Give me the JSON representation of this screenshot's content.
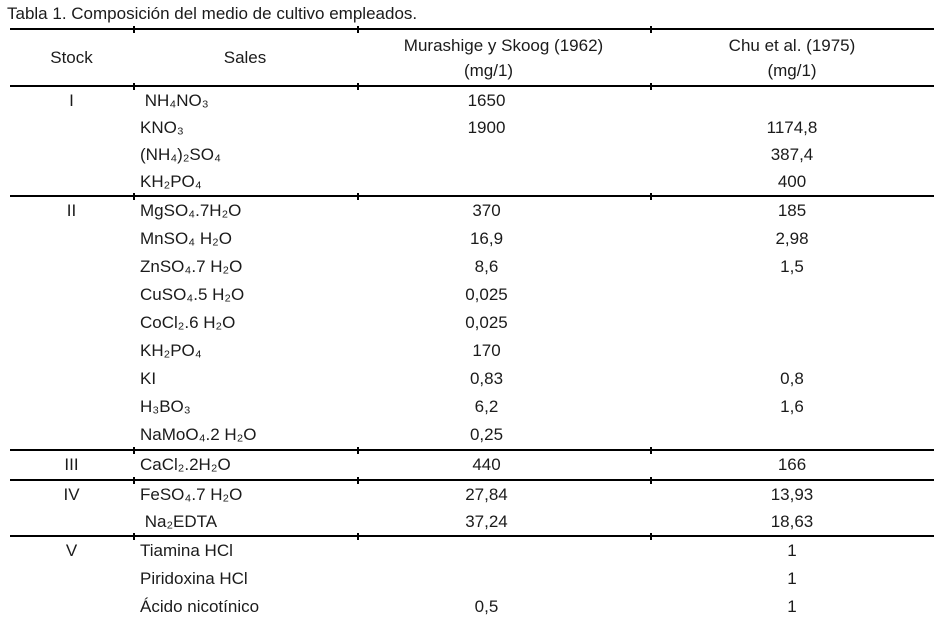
{
  "caption": "Tabla 1. Composición del medio de cultivo empleados.",
  "header": {
    "stock": "Stock",
    "sales": "Sales",
    "ms_title": "Murashige y Skoog (1962)",
    "ms_unit": "(mg/1)",
    "chu_title": "Chu et al. (1975)",
    "chu_unit": "(mg/1)"
  },
  "groups": [
    {
      "stock": "I",
      "rows": [
        {
          "sales": " NH₄NO₃",
          "ms": "1650",
          "chu": ""
        },
        {
          "sales": "KNO₃",
          "ms": "1900",
          "chu": "1174,8"
        },
        {
          "sales": "(NH₄)₂SO₄",
          "ms": "",
          "chu": "387,4"
        },
        {
          "sales": "KH₂PO₄",
          "ms": "",
          "chu": "400"
        }
      ]
    },
    {
      "stock": "II",
      "rows": [
        {
          "sales": "MgSO₄.7H₂O",
          "ms": "370",
          "chu": "185"
        },
        {
          "sales": "MnSO₄ H₂O",
          "ms": "16,9",
          "chu": "2,98"
        },
        {
          "sales": "ZnSO₄.7 H₂O",
          "ms": "8,6",
          "chu": "1,5"
        },
        {
          "sales": "CuSO₄.5 H₂O",
          "ms": "0,025",
          "chu": ""
        },
        {
          "sales": "CoCl₂.6 H₂O",
          "ms": "0,025",
          "chu": ""
        },
        {
          "sales": "KH₂PO₄",
          "ms": "170",
          "chu": ""
        },
        {
          "sales": "KI",
          "ms": "0,83",
          "chu": "0,8"
        },
        {
          "sales": "H₃BO₃",
          "ms": "6,2",
          "chu": "1,6"
        },
        {
          "sales": "NaMoO₄.2 H₂O",
          "ms": "0,25",
          "chu": ""
        }
      ]
    },
    {
      "stock": "III",
      "rows": [
        {
          "sales": "CaCl₂.2H₂O",
          "ms": "440",
          "chu": "166"
        }
      ]
    },
    {
      "stock": "IV",
      "rows": [
        {
          "sales": "FeSO₄.7 H₂O",
          "ms": "27,84",
          "chu": "13,93"
        },
        {
          "sales": " Na₂EDTA",
          "ms": "37,24",
          "chu": "18,63"
        }
      ]
    },
    {
      "stock": "V",
      "rows": [
        {
          "sales": "Tiamina HCl",
          "ms": "",
          "chu": "1"
        },
        {
          "sales": "Piridoxina HCl",
          "ms": "",
          "chu": "1"
        },
        {
          "sales": "Ácido nicotínico",
          "ms": "0,5",
          "chu": "1"
        }
      ]
    }
  ],
  "colors": {
    "text": "#1b1b1b",
    "rule": "#000000"
  }
}
